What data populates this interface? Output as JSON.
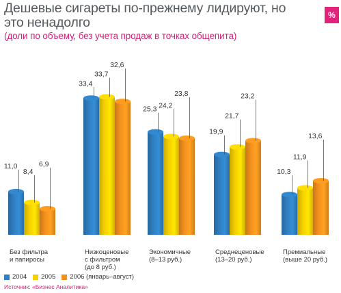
{
  "header": {
    "title": "Дешевые сигареты по-прежнему лидируют, но это ненадолго",
    "subtitle": "(доли по объему, без учета продаж в точках общепита)",
    "badge": "%"
  },
  "colors": {
    "2004": "#2f7fc1",
    "2005": "#f5cf00",
    "2006": "#f4911e"
  },
  "chart_data": {
    "type": "bar",
    "categories": [
      "Без фильтра и папиросы",
      "Низкоценовые с фильтром (до 8 руб.)",
      "Экономичные (8–13 руб.)",
      "Среднеценовые (13–20 руб.)",
      "Премиальные (выше 20 руб.)"
    ],
    "category_lines": [
      [
        "Без фильтра",
        "и папиросы"
      ],
      [
        "Низкоценовые",
        "с фильтром",
        "(до 8 руб.)"
      ],
      [
        "Экономичные",
        "(8–13 руб.)"
      ],
      [
        "Среднеценовые",
        "(13–20 руб.)"
      ],
      [
        "Премиальные",
        "(выше 20 руб.)"
      ]
    ],
    "series": [
      {
        "name": "2004",
        "values": [
          11.0,
          33.4,
          25.3,
          19.9,
          10.3
        ],
        "labels": [
          "11,0",
          "33,4",
          "25,3",
          "19,9",
          "10,3"
        ]
      },
      {
        "name": "2005",
        "values": [
          8.4,
          33.7,
          24.2,
          21.7,
          11.9
        ],
        "labels": [
          "8,4",
          "33,7",
          "24,2",
          "21,7",
          "11,9"
        ]
      },
      {
        "name": "2006 (январь–август)",
        "values": [
          6.9,
          32.6,
          23.8,
          23.2,
          13.6
        ],
        "labels": [
          "6,9",
          "32,6",
          "23,8",
          "23,2",
          "13,6"
        ]
      }
    ],
    "ylim": [
      0,
      35
    ],
    "grid": false,
    "legend_position": "bottom-left"
  },
  "legend": [
    "2004",
    "2005",
    "2006 (январь–август)"
  ],
  "source": "Источник: «Бизнес Аналитика»"
}
